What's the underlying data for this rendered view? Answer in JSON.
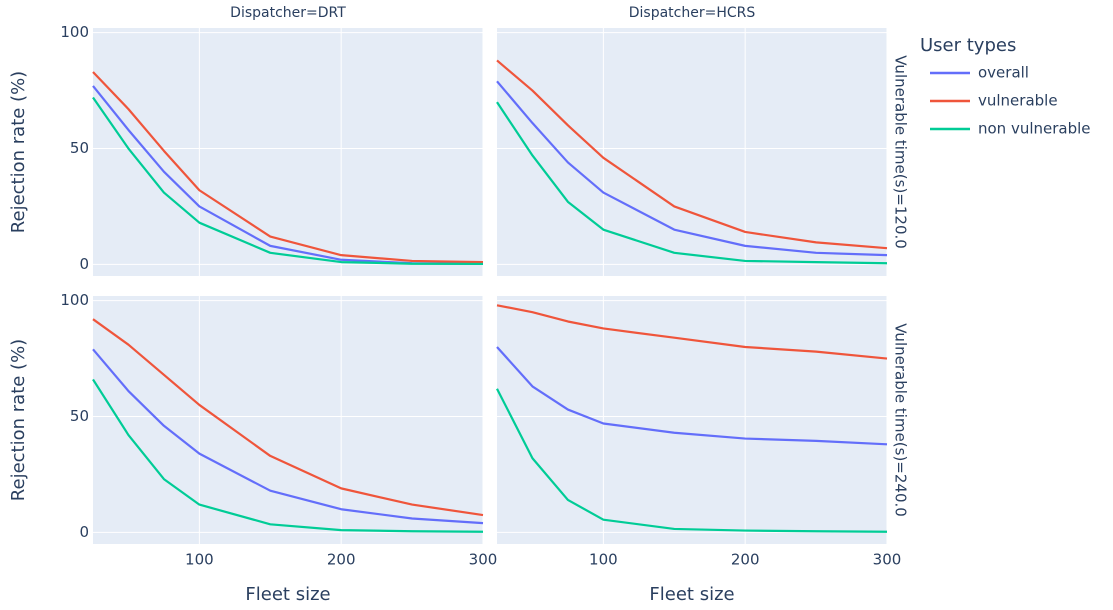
{
  "chart_data": {
    "type": "line",
    "legend_title": "User types",
    "x_label": "Fleet size",
    "y_label": "Rejection rate (%)",
    "columns": [
      "Dispatcher=DRT",
      "Dispatcher=HCRS"
    ],
    "rows": [
      "Vulnerable time(s)=120.0",
      "Vulnerable time(s)=240.0"
    ],
    "legend": [
      {
        "name": "overall",
        "color": "#636efa"
      },
      {
        "name": "vulnerable",
        "color": "#EF553B"
      },
      {
        "name": "non vulnerable",
        "color": "#00cc96"
      }
    ],
    "x": [
      25,
      50,
      75,
      100,
      150,
      200,
      250,
      300
    ],
    "xlim": [
      25,
      300
    ],
    "xticks": [
      100,
      200,
      300
    ],
    "ylim": [
      -5,
      102
    ],
    "yticks": [
      0,
      50,
      100
    ],
    "grid": true,
    "panels": [
      {
        "series": [
          {
            "values": [
              77,
              58,
              40,
              25,
              8,
              2,
              0.5,
              0.3
            ]
          },
          {
            "values": [
              83,
              67,
              49,
              32,
              12,
              4,
              1.5,
              1
            ]
          },
          {
            "values": [
              72,
              50,
              31,
              18,
              5,
              1,
              0.3,
              0.2
            ]
          }
        ]
      },
      {
        "series": [
          {
            "values": [
              79,
              61,
              44,
              31,
              15,
              8,
              5,
              4
            ]
          },
          {
            "values": [
              88,
              75,
              60,
              46,
              25,
              14,
              9.5,
              7
            ]
          },
          {
            "values": [
              70,
              47,
              27,
              15,
              5,
              1.5,
              1,
              0.5
            ]
          }
        ]
      },
      {
        "series": [
          {
            "values": [
              79,
              61,
              46,
              34,
              18,
              10,
              6,
              4
            ]
          },
          {
            "values": [
              92,
              81,
              68,
              55,
              33,
              19,
              12,
              7.5
            ]
          },
          {
            "values": [
              66,
              42,
              23,
              12,
              3.5,
              1,
              0.5,
              0.3
            ]
          }
        ]
      },
      {
        "series": [
          {
            "values": [
              80,
              63,
              53,
              47,
              43,
              40.5,
              39.5,
              38
            ]
          },
          {
            "values": [
              98,
              95,
              91,
              88,
              84,
              80,
              78,
              75
            ]
          },
          {
            "values": [
              62,
              32,
              14,
              5.5,
              1.5,
              0.8,
              0.5,
              0.3
            ]
          }
        ]
      }
    ]
  }
}
